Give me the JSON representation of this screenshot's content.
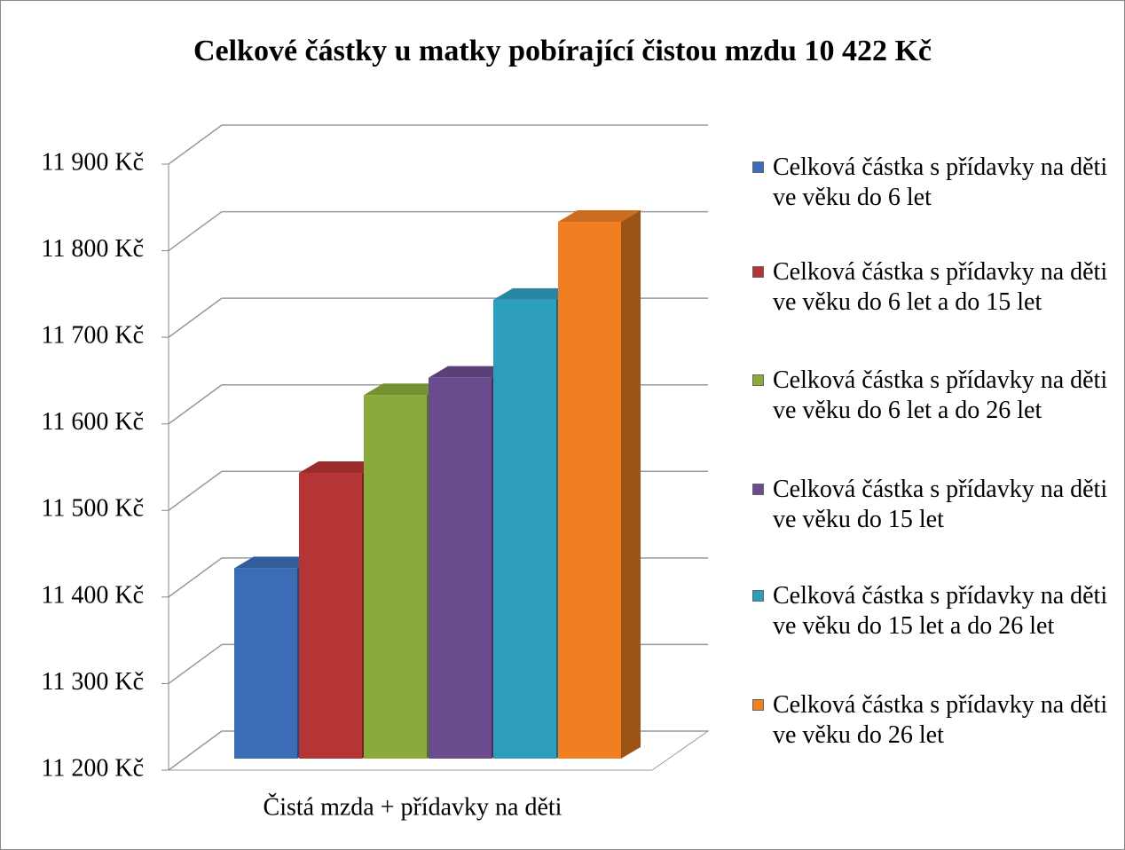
{
  "chart_data": {
    "type": "bar3d",
    "title": "Celkové částky u matky pobírající čistou mzdu 10 422 Kč",
    "categories": [
      "Čistá mzda + přídavky na děti"
    ],
    "series": [
      {
        "name": "Celková částka s přídavky na děti ve věku do 6 let",
        "color": "#3a6db5",
        "values": [
          11420
        ]
      },
      {
        "name": "Celková částka s přídavky na děti ve věku do 6 let a do 15 let",
        "color": "#b53434",
        "values": [
          11530
        ]
      },
      {
        "name": "Celková částka s přídavky na děti ve věku do 6 let a do 26 let",
        "color": "#8aab3b",
        "values": [
          11620
        ]
      },
      {
        "name": "Celková částka s přídavky na děti ve věku do 15 let",
        "color": "#6a4b8e",
        "values": [
          11640
        ]
      },
      {
        "name": "Celková částka s přídavky na děti ve věku do 15 let a do 26 let",
        "color": "#2e9ebd",
        "values": [
          11730
        ]
      },
      {
        "name": "Celková částka s přídavky na děti ve věku do 26 let",
        "color": "#f07f22",
        "values": [
          11820
        ]
      }
    ],
    "ylim": [
      11200,
      11900
    ],
    "yticks": [
      {
        "value": 11200,
        "label": "11 200 Kč"
      },
      {
        "value": 11300,
        "label": "11 300 Kč"
      },
      {
        "value": 11400,
        "label": "11 400 Kč"
      },
      {
        "value": 11500,
        "label": "11 500 Kč"
      },
      {
        "value": 11600,
        "label": "11 600 Kč"
      },
      {
        "value": 11700,
        "label": "11 700 Kč"
      },
      {
        "value": 11800,
        "label": "11 800 Kč"
      },
      {
        "value": 11900,
        "label": "11 900 Kč"
      }
    ],
    "grid": true,
    "legend": "right"
  }
}
